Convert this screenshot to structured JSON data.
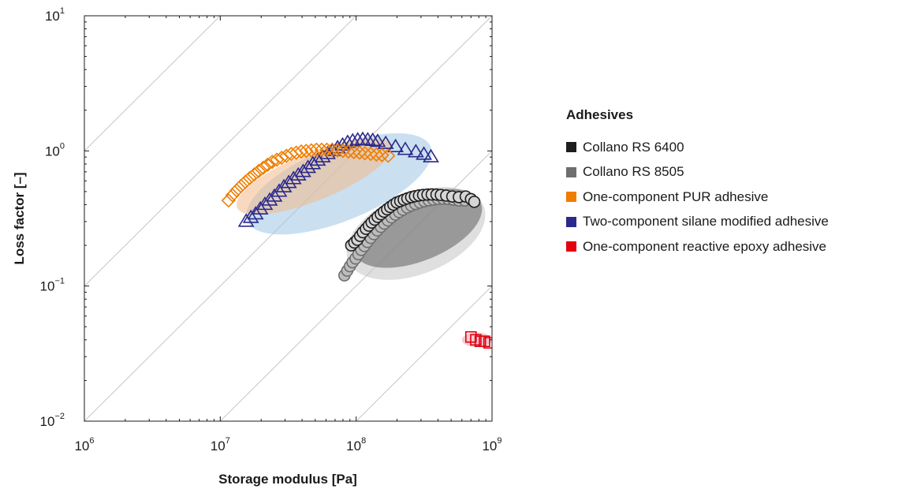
{
  "chart_data": {
    "type": "scatter",
    "title": "",
    "xlabel": "Storage modulus [Pa]",
    "ylabel": "Loss factor [–]",
    "x_scale": "log",
    "y_scale": "log",
    "xlim": [
      1000000,
      1000000000
    ],
    "ylim": [
      0.01,
      10
    ],
    "x_ticks": [
      {
        "base": "10",
        "exp": "6",
        "value": 1000000
      },
      {
        "base": "10",
        "exp": "7",
        "value": 10000000
      },
      {
        "base": "10",
        "exp": "8",
        "value": 100000000
      },
      {
        "base": "10",
        "exp": "9",
        "value": 1000000000
      }
    ],
    "y_ticks": [
      {
        "base": "10",
        "exp": "−2",
        "value": 0.01
      },
      {
        "base": "10",
        "exp": "−1",
        "value": 0.1
      },
      {
        "base": "10",
        "exp": "0",
        "value": 1
      },
      {
        "base": "10",
        "exp": "1",
        "value": 10
      }
    ],
    "grid": false,
    "legend_title": "Adhesives",
    "legend_position": "right",
    "series": [
      {
        "name": "Collano RS 6400",
        "marker": "circle",
        "color": "#1e1e1e",
        "fill": "#d6d6d6",
        "region": {
          "x_range": [
            90000000,
            900000000
          ],
          "y_range": [
            0.13,
            0.55
          ],
          "color": "#7a7a7a"
        },
        "points": [
          [
            92000000,
            0.2
          ],
          [
            97000000,
            0.21
          ],
          [
            102000000,
            0.22
          ],
          [
            107000000,
            0.235
          ],
          [
            112000000,
            0.25
          ],
          [
            118000000,
            0.265
          ],
          [
            124000000,
            0.28
          ],
          [
            130000000,
            0.295
          ],
          [
            137000000,
            0.31
          ],
          [
            144000000,
            0.325
          ],
          [
            152000000,
            0.34
          ],
          [
            160000000,
            0.355
          ],
          [
            169000000,
            0.37
          ],
          [
            178000000,
            0.385
          ],
          [
            188000000,
            0.4
          ],
          [
            199000000,
            0.415
          ],
          [
            211000000,
            0.425
          ],
          [
            224000000,
            0.435
          ],
          [
            238000000,
            0.445
          ],
          [
            254000000,
            0.455
          ],
          [
            271000000,
            0.462
          ],
          [
            290000000,
            0.468
          ],
          [
            311000000,
            0.472
          ],
          [
            335000000,
            0.475
          ],
          [
            360000000,
            0.476
          ],
          [
            390000000,
            0.475
          ],
          [
            420000000,
            0.472
          ],
          [
            460000000,
            0.467
          ],
          [
            510000000,
            0.46
          ],
          [
            570000000,
            0.455
          ],
          [
            640000000,
            0.46
          ],
          [
            700000000,
            0.44
          ],
          [
            740000000,
            0.42
          ]
        ]
      },
      {
        "name": "Collano RS 8505",
        "marker": "circle",
        "color": "#6e6e6e",
        "fill": "#bdbdbd",
        "region": {
          "x_range": [
            80000000,
            950000000
          ],
          "y_range": [
            0.1,
            0.6
          ],
          "color": "#c4c4c4"
        },
        "points": [
          [
            82000000,
            0.12
          ],
          [
            86000000,
            0.13
          ],
          [
            90000000,
            0.14
          ],
          [
            94000000,
            0.15
          ],
          [
            99000000,
            0.16
          ],
          [
            104000000,
            0.172
          ],
          [
            109000000,
            0.185
          ],
          [
            115000000,
            0.198
          ],
          [
            121000000,
            0.212
          ],
          [
            128000000,
            0.227
          ],
          [
            135000000,
            0.242
          ],
          [
            143000000,
            0.258
          ],
          [
            152000000,
            0.274
          ],
          [
            161000000,
            0.29
          ],
          [
            171000000,
            0.306
          ],
          [
            182000000,
            0.322
          ],
          [
            194000000,
            0.338
          ],
          [
            207000000,
            0.353
          ],
          [
            221000000,
            0.367
          ],
          [
            237000000,
            0.381
          ],
          [
            254000000,
            0.394
          ],
          [
            273000000,
            0.405
          ],
          [
            294000000,
            0.415
          ],
          [
            317000000,
            0.424
          ],
          [
            342000000,
            0.431
          ],
          [
            370000000,
            0.437
          ],
          [
            400000000,
            0.441
          ],
          [
            435000000,
            0.443
          ],
          [
            475000000,
            0.441
          ],
          [
            520000000,
            0.436
          ],
          [
            570000000,
            0.43
          ],
          [
            630000000,
            0.43
          ]
        ]
      },
      {
        "name": "One-component PUR adhesive",
        "marker": "diamond",
        "color": "#f07d00",
        "fill": "none",
        "region": {
          "x_range": [
            12000000,
            200000000
          ],
          "y_range": [
            0.38,
            1.1
          ],
          "color": "#f2b98a"
        },
        "points": [
          [
            11500000,
            0.43
          ],
          [
            12300000,
            0.47
          ],
          [
            13200000,
            0.51
          ],
          [
            14200000,
            0.55
          ],
          [
            15300000,
            0.59
          ],
          [
            16500000,
            0.63
          ],
          [
            17800000,
            0.67
          ],
          [
            19200000,
            0.71
          ],
          [
            20700000,
            0.75
          ],
          [
            22300000,
            0.79
          ],
          [
            24100000,
            0.83
          ],
          [
            26100000,
            0.86
          ],
          [
            28300000,
            0.89
          ],
          [
            30700000,
            0.92
          ],
          [
            33300000,
            0.95
          ],
          [
            36200000,
            0.97
          ],
          [
            39400000,
            0.99
          ],
          [
            42900000,
            1.0
          ],
          [
            46800000,
            1.01
          ],
          [
            51000000,
            1.02
          ],
          [
            55700000,
            1.02
          ],
          [
            60900000,
            1.02
          ],
          [
            66600000,
            1.02
          ],
          [
            72900000,
            1.01
          ],
          [
            79900000,
            1.0
          ],
          [
            87600000,
            0.99
          ],
          [
            96100000,
            0.98
          ],
          [
            106000000,
            0.97
          ],
          [
            116000000,
            0.96
          ],
          [
            128000000,
            0.95
          ],
          [
            141000000,
            0.94
          ],
          [
            155000000,
            0.93
          ],
          [
            172000000,
            0.92
          ]
        ]
      },
      {
        "name": "Two-component silane modified adhesive",
        "marker": "triangle",
        "color": "#2a2a8c",
        "fill": "none",
        "region": {
          "x_range": [
            14000000,
            400000000
          ],
          "y_range": [
            0.25,
            1.3
          ],
          "color": "#9fc6e6"
        },
        "points": [
          [
            15500000,
            0.3
          ],
          [
            16800000,
            0.32
          ],
          [
            18200000,
            0.34
          ],
          [
            19700000,
            0.37
          ],
          [
            21300000,
            0.4
          ],
          [
            23100000,
            0.43
          ],
          [
            25000000,
            0.46
          ],
          [
            27100000,
            0.5
          ],
          [
            29400000,
            0.54
          ],
          [
            31900000,
            0.58
          ],
          [
            34600000,
            0.62
          ],
          [
            37500000,
            0.66
          ],
          [
            40700000,
            0.7
          ],
          [
            44200000,
            0.75
          ],
          [
            48000000,
            0.8
          ],
          [
            52200000,
            0.85
          ],
          [
            56700000,
            0.9
          ],
          [
            61700000,
            0.95
          ],
          [
            67100000,
            1.0
          ],
          [
            73000000,
            1.05
          ],
          [
            79500000,
            1.1
          ],
          [
            86600000,
            1.15
          ],
          [
            94300000,
            1.18
          ],
          [
            102700000,
            1.2
          ],
          [
            111800000,
            1.21
          ],
          [
            121700000,
            1.2
          ],
          [
            132400000,
            1.19
          ],
          [
            144000000,
            1.17
          ],
          [
            165000000,
            1.13
          ],
          [
            195000000,
            1.07
          ],
          [
            230000000,
            1.02
          ],
          [
            275000000,
            0.98
          ],
          [
            315000000,
            0.94
          ],
          [
            355000000,
            0.9
          ]
        ]
      },
      {
        "name": "One-component reactive epoxy adhesive",
        "marker": "square",
        "color": "#e3000f",
        "fill": "none",
        "region": {
          "x_range": [
            600000000,
            1000000000
          ],
          "y_range": [
            0.034,
            0.047
          ],
          "color": "#e8a0ad"
        },
        "points": [
          [
            700000000,
            0.042
          ],
          [
            760000000,
            0.04
          ],
          [
            820000000,
            0.039
          ],
          [
            880000000,
            0.039
          ],
          [
            950000000,
            0.038
          ]
        ]
      }
    ]
  }
}
